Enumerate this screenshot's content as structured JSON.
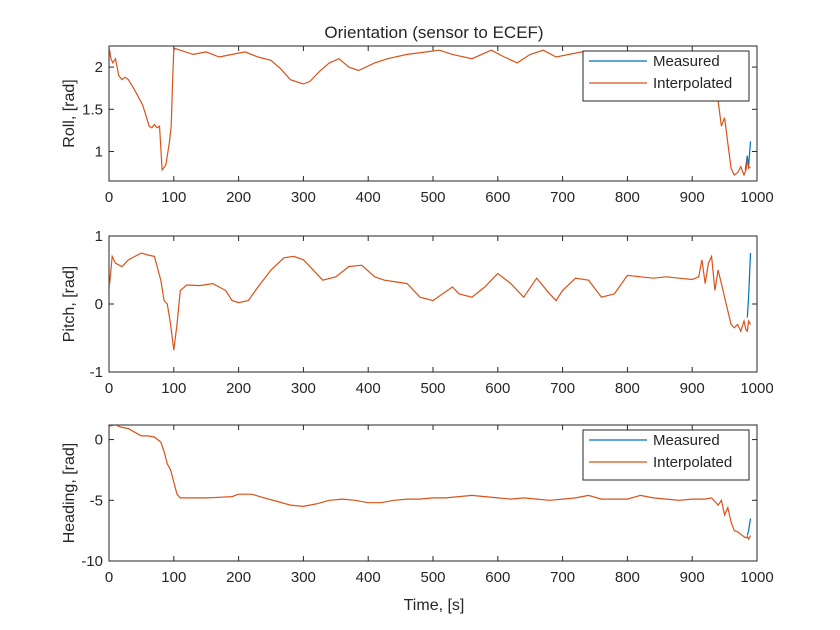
{
  "chart_data": {
    "title": "Orientation (sensor to ECEF)",
    "xlabel": "Time, [s]",
    "colors": {
      "measured": "#0072BD",
      "interpolated": "#D95319",
      "axes": "#262626"
    },
    "subplots": [
      {
        "id": "roll",
        "type": "line",
        "ylabel": "Roll, [rad]",
        "xlim": [
          0,
          1000
        ],
        "ylim": [
          0.65,
          2.25
        ],
        "xticks": [
          0,
          100,
          200,
          300,
          400,
          500,
          600,
          700,
          800,
          900,
          1000
        ],
        "yticks": [
          1,
          1.5,
          2
        ],
        "ytick_labels": [
          "1",
          "1.5",
          "2"
        ],
        "legend": {
          "position": "top-right",
          "entries": [
            "Measured",
            "Interpolated"
          ]
        },
        "series": [
          {
            "name": "Measured",
            "x": [
              982,
              985,
              987,
              990
            ],
            "y": [
              0.78,
              0.95,
              0.82,
              1.12
            ]
          },
          {
            "name": "Interpolated",
            "x": [
              0,
              3,
              6,
              10,
              15,
              20,
              25,
              30,
              38,
              45,
              52,
              58,
              62,
              66,
              70,
              74,
              78,
              80,
              82,
              84,
              86,
              88,
              90,
              93,
              96,
              98,
              100,
              102,
              110,
              130,
              150,
              170,
              190,
              210,
              230,
              250,
              265,
              280,
              300,
              310,
              325,
              340,
              355,
              370,
              385,
              410,
              430,
              460,
              490,
              510,
              530,
              560,
              590,
              610,
              630,
              650,
              670,
              690,
              710,
              730,
              760,
              790,
              810,
              830,
              850,
              880,
              900,
              920,
              930,
              935,
              940,
              945,
              950,
              955,
              960,
              965,
              970,
              975,
              980,
              983,
              985,
              987,
              990
            ],
            "y": [
              2.25,
              2.1,
              2.05,
              2.1,
              1.9,
              1.85,
              1.88,
              1.85,
              1.75,
              1.65,
              1.55,
              1.4,
              1.3,
              1.28,
              1.32,
              1.28,
              1.3,
              1.05,
              0.78,
              0.8,
              0.82,
              0.85,
              0.95,
              1.1,
              1.3,
              1.8,
              2.2,
              2.22,
              2.2,
              2.15,
              2.18,
              2.12,
              2.15,
              2.18,
              2.12,
              2.08,
              1.98,
              1.85,
              1.8,
              1.83,
              1.95,
              2.05,
              2.1,
              2.0,
              1.96,
              2.05,
              2.1,
              2.15,
              2.18,
              2.2,
              2.15,
              2.1,
              2.2,
              2.12,
              2.05,
              2.15,
              2.2,
              2.12,
              2.15,
              2.18,
              2.12,
              2.17,
              2.15,
              2.1,
              2.12,
              2.15,
              2.12,
              2.18,
              2.1,
              1.9,
              1.6,
              1.3,
              1.4,
              1.1,
              0.8,
              0.72,
              0.75,
              0.82,
              0.72,
              0.78,
              0.9,
              0.8,
              0.82
            ]
          }
        ]
      },
      {
        "id": "pitch",
        "type": "line",
        "ylabel": "Pitch, [rad]",
        "xlim": [
          0,
          1000
        ],
        "ylim": [
          -1,
          1
        ],
        "xticks": [
          0,
          100,
          200,
          300,
          400,
          500,
          600,
          700,
          800,
          900,
          1000
        ],
        "yticks": [
          -1,
          0,
          1
        ],
        "ytick_labels": [
          "-1",
          "0",
          "1"
        ],
        "series": [
          {
            "name": "Measured",
            "x": [
              985,
              987,
              990
            ],
            "y": [
              -0.2,
              0.1,
              0.75
            ]
          },
          {
            "name": "Interpolated",
            "x": [
              0,
              5,
              10,
              20,
              30,
              40,
              50,
              60,
              70,
              80,
              85,
              90,
              95,
              100,
              105,
              110,
              120,
              140,
              160,
              180,
              190,
              200,
              215,
              230,
              250,
              270,
              285,
              300,
              310,
              330,
              350,
              370,
              390,
              410,
              425,
              440,
              460,
              480,
              500,
              515,
              530,
              540,
              560,
              580,
              600,
              620,
              640,
              660,
              680,
              690,
              700,
              720,
              740,
              760,
              780,
              800,
              820,
              840,
              860,
              880,
              900,
              910,
              915,
              920,
              925,
              930,
              935,
              940,
              945,
              950,
              955,
              960,
              965,
              970,
              975,
              980,
              983,
              985,
              987,
              990
            ],
            "y": [
              0.2,
              0.7,
              0.6,
              0.55,
              0.65,
              0.7,
              0.75,
              0.72,
              0.7,
              0.35,
              0.05,
              0.0,
              -0.3,
              -0.68,
              -0.3,
              0.2,
              0.28,
              0.27,
              0.3,
              0.2,
              0.05,
              0.02,
              0.05,
              0.25,
              0.5,
              0.68,
              0.7,
              0.65,
              0.55,
              0.35,
              0.4,
              0.55,
              0.57,
              0.4,
              0.35,
              0.33,
              0.3,
              0.1,
              0.05,
              0.15,
              0.25,
              0.15,
              0.1,
              0.25,
              0.45,
              0.3,
              0.1,
              0.38,
              0.15,
              0.05,
              0.2,
              0.38,
              0.35,
              0.1,
              0.15,
              0.42,
              0.4,
              0.38,
              0.4,
              0.38,
              0.36,
              0.4,
              0.65,
              0.3,
              0.6,
              0.7,
              0.2,
              0.5,
              0.3,
              0.1,
              -0.1,
              -0.3,
              -0.35,
              -0.3,
              -0.4,
              -0.25,
              -0.38,
              -0.4,
              -0.25,
              -0.3
            ]
          }
        ]
      },
      {
        "id": "heading",
        "type": "line",
        "ylabel": "Heading, [rad]",
        "xlim": [
          0,
          1000
        ],
        "ylim": [
          -10,
          1.2
        ],
        "xticks": [
          0,
          100,
          200,
          300,
          400,
          500,
          600,
          700,
          800,
          900,
          1000
        ],
        "yticks": [
          -10,
          -5,
          0
        ],
        "ytick_labels": [
          "-10",
          "-5",
          "0"
        ],
        "legend": {
          "position": "top-right",
          "entries": [
            "Measured",
            "Interpolated"
          ]
        },
        "series": [
          {
            "name": "Measured",
            "x": [
              985,
              987,
              990
            ],
            "y": [
              -7.9,
              -7.5,
              -6.5
            ]
          },
          {
            "name": "Interpolated",
            "x": [
              0,
              10,
              20,
              30,
              40,
              50,
              60,
              70,
              80,
              85,
              90,
              95,
              100,
              105,
              110,
              130,
              150,
              170,
              190,
              200,
              220,
              240,
              260,
              280,
              300,
              320,
              340,
              360,
              380,
              400,
              420,
              440,
              460,
              480,
              500,
              520,
              540,
              560,
              580,
              600,
              620,
              640,
              660,
              680,
              700,
              720,
              740,
              760,
              780,
              800,
              820,
              840,
              860,
              880,
              900,
              920,
              930,
              935,
              940,
              945,
              950,
              955,
              960,
              965,
              970,
              975,
              980,
              983,
              985,
              987,
              990
            ],
            "y": [
              1.1,
              1.2,
              1.0,
              0.9,
              0.6,
              0.3,
              0.3,
              0.2,
              -0.2,
              -1.0,
              -2.0,
              -2.5,
              -3.5,
              -4.5,
              -4.8,
              -4.8,
              -4.8,
              -4.75,
              -4.7,
              -4.5,
              -4.5,
              -4.8,
              -5.1,
              -5.4,
              -5.5,
              -5.3,
              -5.0,
              -4.9,
              -5.0,
              -5.2,
              -5.2,
              -5.0,
              -4.9,
              -4.9,
              -4.8,
              -4.8,
              -4.7,
              -4.6,
              -4.7,
              -4.8,
              -4.9,
              -4.8,
              -4.9,
              -5.0,
              -4.9,
              -4.8,
              -4.6,
              -4.9,
              -4.9,
              -4.9,
              -4.6,
              -4.8,
              -4.9,
              -5.0,
              -4.9,
              -4.9,
              -4.8,
              -5.1,
              -5.4,
              -5.0,
              -6.2,
              -5.6,
              -6.8,
              -7.5,
              -7.6,
              -7.8,
              -8.0,
              -8.1,
              -8.0,
              -8.2,
              -7.9
            ]
          }
        ]
      }
    ]
  }
}
